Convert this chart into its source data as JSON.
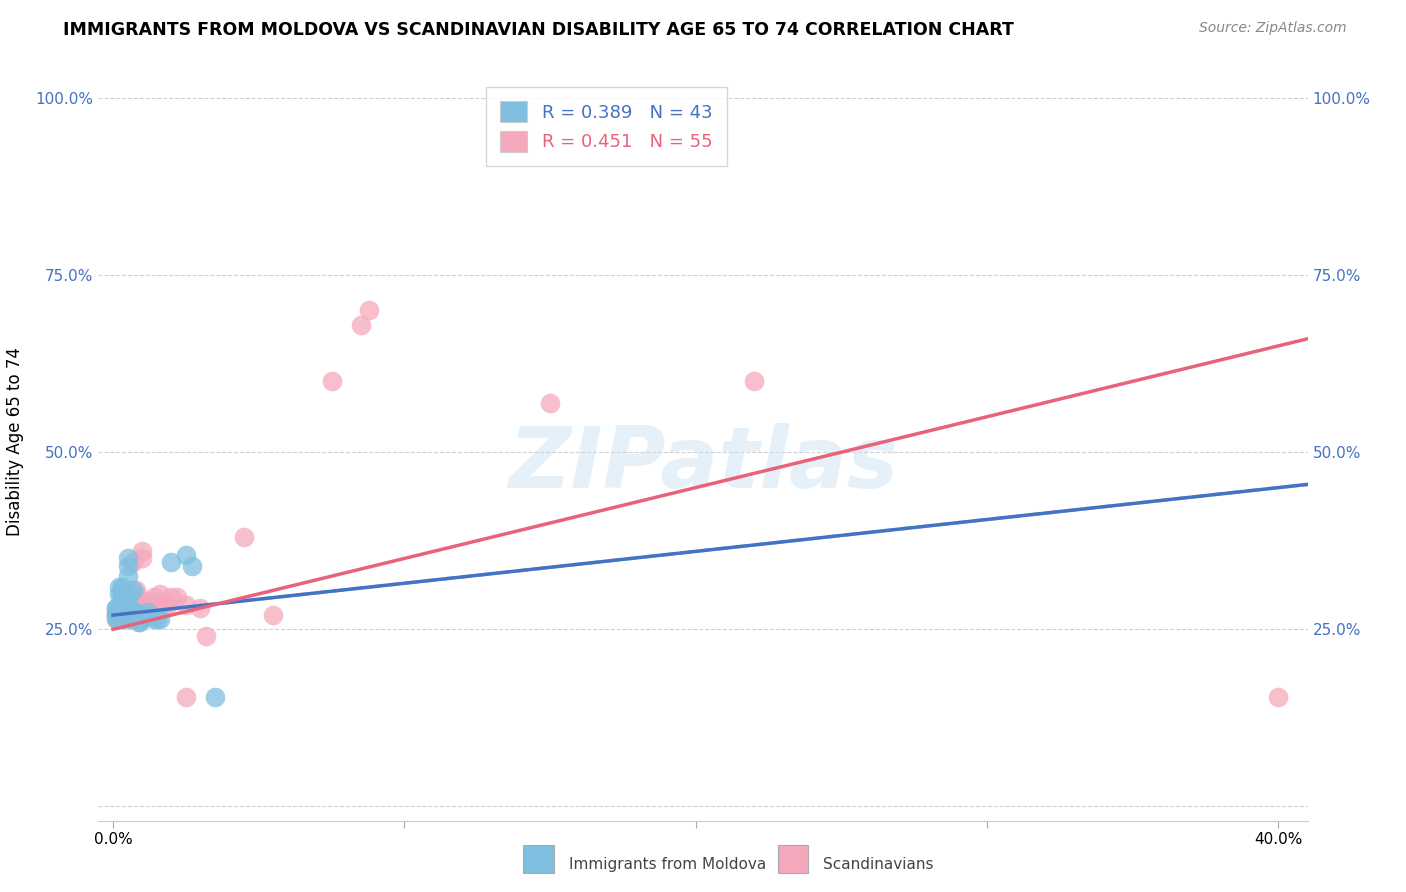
{
  "title": "IMMIGRANTS FROM MOLDOVA VS SCANDINAVIAN DISABILITY AGE 65 TO 74 CORRELATION CHART",
  "source": "Source: ZipAtlas.com",
  "ylabel_label": "Disability Age 65 to 74",
  "xlim": [
    -0.5,
    41.0
  ],
  "ylim": [
    -2.0,
    105.0
  ],
  "xticks": [
    0.0,
    10.0,
    20.0,
    30.0,
    40.0
  ],
  "yticks": [
    0.0,
    25.0,
    50.0,
    75.0,
    100.0
  ],
  "xtick_labels": [
    "0.0%",
    "",
    "",
    "",
    "40.0%"
  ],
  "ytick_labels": [
    "",
    "25.0%",
    "50.0%",
    "75.0%",
    "100.0%"
  ],
  "blue_R": "0.389",
  "blue_N": "43",
  "pink_R": "0.451",
  "pink_N": "55",
  "blue_scatter_color": "#7fbfe0",
  "pink_scatter_color": "#f5a8bc",
  "blue_line_color": "#4472c4",
  "pink_line_color": "#e8637a",
  "blue_dash_color": "#aaccdd",
  "watermark": "ZIPatlas",
  "legend_label_blue": "Immigrants from Moldova",
  "legend_label_pink": "Scandinavians",
  "blue_points_x": [
    0.1,
    0.1,
    0.1,
    0.1,
    0.15,
    0.2,
    0.2,
    0.2,
    0.2,
    0.3,
    0.3,
    0.3,
    0.3,
    0.3,
    0.4,
    0.4,
    0.4,
    0.5,
    0.5,
    0.5,
    0.5,
    0.5,
    0.6,
    0.6,
    0.6,
    0.7,
    0.7,
    0.7,
    0.8,
    0.8,
    0.8,
    0.9,
    0.9,
    1.0,
    1.0,
    1.2,
    1.4,
    1.5,
    1.6,
    2.0,
    2.5,
    2.7,
    3.5
  ],
  "blue_points_y": [
    27.0,
    28.0,
    28.0,
    27.0,
    26.5,
    26.5,
    28.0,
    30.0,
    31.0,
    29.5,
    31.0,
    30.0,
    28.0,
    27.0,
    28.0,
    29.5,
    27.5,
    32.5,
    34.0,
    35.0,
    28.0,
    26.5,
    27.0,
    28.0,
    30.0,
    30.5,
    27.5,
    26.5,
    26.5,
    27.0,
    27.5,
    26.0,
    26.0,
    26.5,
    27.0,
    27.5,
    26.5,
    26.5,
    26.5,
    34.5,
    35.5,
    34.0,
    15.5
  ],
  "pink_points_x": [
    0.1,
    0.1,
    0.1,
    0.1,
    0.2,
    0.2,
    0.2,
    0.2,
    0.3,
    0.3,
    0.3,
    0.3,
    0.4,
    0.4,
    0.4,
    0.4,
    0.5,
    0.5,
    0.5,
    0.5,
    0.6,
    0.6,
    0.6,
    0.7,
    0.7,
    0.8,
    0.8,
    0.9,
    1.0,
    1.0,
    1.1,
    1.1,
    1.2,
    1.2,
    1.4,
    1.5,
    1.6,
    1.6,
    1.7,
    1.8,
    1.9,
    2.0,
    2.2,
    2.5,
    2.5,
    3.0,
    3.2,
    4.5,
    5.5,
    7.5,
    8.5,
    8.8,
    15.0,
    22.0,
    40.0
  ],
  "pink_points_y": [
    26.5,
    27.0,
    26.5,
    27.5,
    26.5,
    28.0,
    27.5,
    28.0,
    26.5,
    28.0,
    30.0,
    30.5,
    28.0,
    28.5,
    29.5,
    28.0,
    28.0,
    28.5,
    29.5,
    29.0,
    30.0,
    28.5,
    29.5,
    34.5,
    30.0,
    30.0,
    30.5,
    28.5,
    35.0,
    36.0,
    29.0,
    28.5,
    28.5,
    28.5,
    29.5,
    28.5,
    28.5,
    30.0,
    28.5,
    28.5,
    28.5,
    29.5,
    29.5,
    15.5,
    28.5,
    28.0,
    24.0,
    38.0,
    27.0,
    60.0,
    68.0,
    70.0,
    57.0,
    60.0,
    15.5
  ]
}
